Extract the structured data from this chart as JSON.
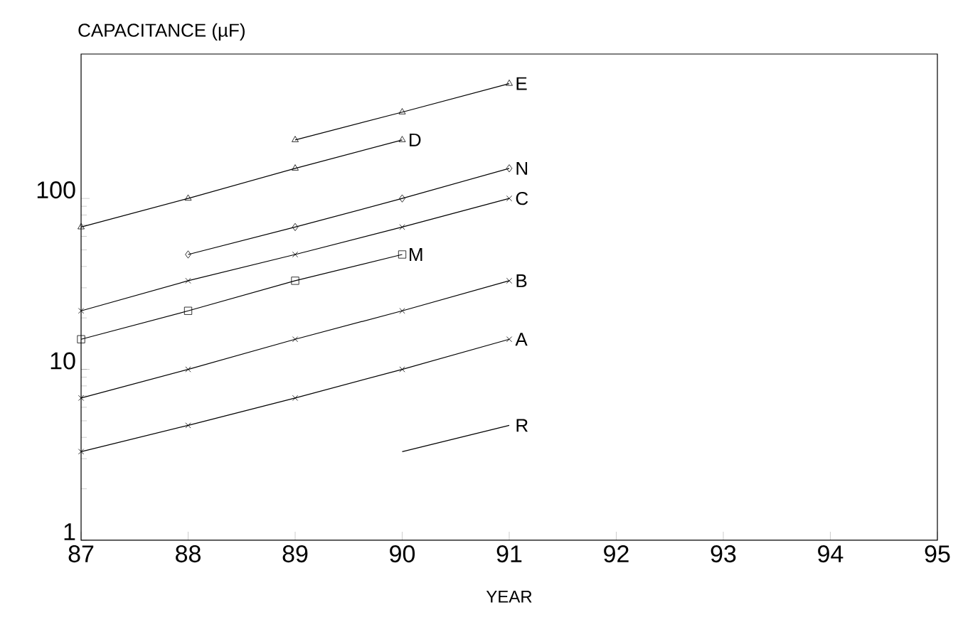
{
  "chart_data": {
    "type": "line",
    "xlabel": "YEAR",
    "ylabel": "CAPACITANCE (µF)",
    "log": "y",
    "grid": false,
    "legend": false,
    "xlim": [
      87,
      95
    ],
    "xticks": [
      87,
      88,
      89,
      90,
      91,
      92,
      93,
      94,
      95
    ],
    "ylim": [
      1,
      700
    ],
    "yticks": [
      1,
      10,
      100
    ],
    "series": [
      {
        "name": "E",
        "color": "#000000",
        "marker": "triangle",
        "x": [
          89,
          90,
          91
        ],
        "values": [
          220,
          320,
          470
        ]
      },
      {
        "name": "D",
        "color": "#000000",
        "marker": "triangle",
        "x": [
          87,
          88,
          89,
          90
        ],
        "values": [
          68,
          100,
          150,
          220
        ]
      },
      {
        "name": "N",
        "color": "#000000",
        "marker": "diamond",
        "x": [
          88,
          89,
          90,
          91
        ],
        "values": [
          47,
          68,
          100,
          150
        ]
      },
      {
        "name": "C",
        "color": "#000000",
        "marker": "cross",
        "x": [
          87,
          88,
          89,
          90,
          91
        ],
        "values": [
          22,
          33,
          47,
          68,
          100
        ]
      },
      {
        "name": "M",
        "color": "#000000",
        "marker": "square",
        "x": [
          87,
          88,
          89,
          90
        ],
        "values": [
          15,
          22,
          33,
          47
        ]
      },
      {
        "name": "B",
        "color": "#000000",
        "marker": "cross",
        "x": [
          87,
          88,
          89,
          90,
          91
        ],
        "values": [
          6.8,
          10,
          15,
          22,
          33
        ]
      },
      {
        "name": "A",
        "color": "#000000",
        "marker": "cross",
        "x": [
          87,
          88,
          89,
          90,
          91
        ],
        "values": [
          3.3,
          4.7,
          6.8,
          10,
          15
        ]
      },
      {
        "name": "R",
        "color": "#000000",
        "marker": "none",
        "x": [
          90,
          91
        ],
        "values": [
          3.3,
          4.7
        ]
      }
    ]
  }
}
